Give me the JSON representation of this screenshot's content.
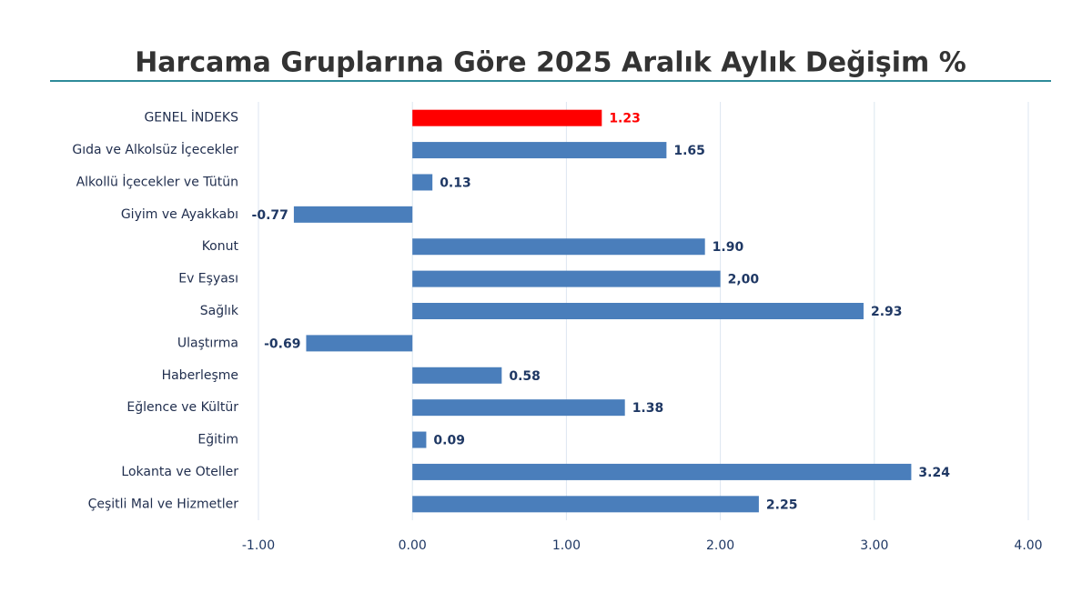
{
  "chart_data": {
    "type": "barh",
    "title": "Harcama Gruplarına Göre 2025 Aralık Aylık Değişim %",
    "categories": [
      "GENEL İNDEKS",
      "Gıda ve Alkolsüz İçecekler",
      "Alkollü İçecekler ve Tütün",
      "Giyim ve Ayakkabı",
      "Konut",
      "Ev Eşyası",
      "Sağlık",
      "Ulaştırma",
      "Haberleşme",
      "Eğlence ve Kültür",
      "Eğitim",
      "Lokanta ve Oteller",
      "Çeşitli Mal ve Hizmetler"
    ],
    "values": [
      1.23,
      1.65,
      0.13,
      -0.77,
      1.9,
      2,
      2.93,
      -0.69,
      0.58,
      1.38,
      0.09,
      3.24,
      2.25
    ],
    "value_labels": [
      "1.23",
      "1.65",
      "0.13",
      "-0.77",
      "1.90",
      "2,00",
      "2.93",
      "-0.69",
      "0.58",
      "1.38",
      "0.09",
      "3.24",
      "2.25"
    ],
    "colors": [
      "#ff0000",
      "#4a7ebb",
      "#4a7ebb",
      "#4a7ebb",
      "#4a7ebb",
      "#4a7ebb",
      "#4a7ebb",
      "#4a7ebb",
      "#4a7ebb",
      "#4a7ebb",
      "#4a7ebb",
      "#4a7ebb",
      "#4a7ebb"
    ],
    "xlim": [
      -1,
      4
    ],
    "xticks": [
      {
        "value": -1,
        "label": "-1.00"
      },
      {
        "value": 0,
        "label": "0.00"
      },
      {
        "value": 1,
        "label": "1.00"
      },
      {
        "value": 2,
        "label": "2.00"
      },
      {
        "value": 3,
        "label": "3.00"
      },
      {
        "value": 4,
        "label": "4.00"
      }
    ],
    "grid": true
  }
}
